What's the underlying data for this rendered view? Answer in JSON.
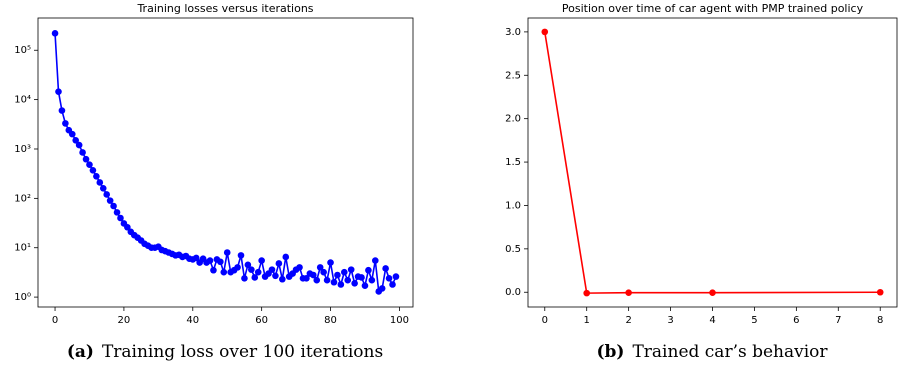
{
  "chart_data": [
    {
      "type": "line",
      "title": "Training losses versus iterations",
      "caption_label": "(a)",
      "caption": "Training loss over 100 iterations",
      "x": [
        0,
        1,
        2,
        3,
        4,
        5,
        6,
        7,
        8,
        9,
        10,
        11,
        12,
        13,
        14,
        15,
        16,
        17,
        18,
        19,
        20,
        21,
        22,
        23,
        24,
        25,
        26,
        27,
        28,
        29,
        30,
        31,
        32,
        33,
        34,
        35,
        36,
        37,
        38,
        39,
        40,
        41,
        42,
        43,
        44,
        45,
        46,
        47,
        48,
        49,
        50,
        51,
        52,
        53,
        54,
        55,
        56,
        57,
        58,
        59,
        60,
        61,
        62,
        63,
        64,
        65,
        66,
        67,
        68,
        69,
        70,
        71,
        72,
        73,
        74,
        75,
        76,
        77,
        78,
        79,
        80,
        81,
        82,
        83,
        84,
        85,
        86,
        87,
        88,
        89,
        90,
        91,
        92,
        93,
        94,
        95,
        96,
        97,
        98,
        99
      ],
      "series": [
        {
          "color": "#0000ff",
          "values": [
            220000,
            14500,
            6000,
            3300,
            2400,
            2000,
            1500,
            1200,
            850,
            620,
            480,
            370,
            280,
            210,
            160,
            120,
            90,
            70,
            52,
            40,
            31,
            26,
            21,
            18,
            16,
            14,
            12,
            11,
            10,
            10,
            10.5,
            9,
            8.5,
            8,
            7.5,
            7,
            7.2,
            6.5,
            6.8,
            6,
            5.8,
            6.2,
            5,
            6,
            5,
            5.5,
            3.5,
            5.8,
            5.2,
            3.2,
            8,
            3.2,
            3.5,
            4,
            7,
            2.4,
            4.5,
            3.6,
            2.5,
            3.2,
            5.5,
            2.6,
            3,
            3.6,
            2.7,
            4.8,
            2.3,
            6.5,
            2.6,
            3,
            3.6,
            4,
            2.4,
            2.4,
            3,
            2.8,
            2.2,
            4,
            3.2,
            2.2,
            5,
            2,
            2.8,
            1.8,
            3.2,
            2.2,
            3.6,
            1.9,
            2.6,
            2.5,
            1.7,
            3.5,
            2.2,
            5.5,
            1.3,
            1.5,
            3.8,
            2.4,
            1.8,
            2.6
          ]
        }
      ],
      "yscale": "log",
      "xlim": [
        -4.95,
        103.95
      ],
      "ylim": [
        0.63,
        450000
      ],
      "xticks": [
        0,
        20,
        40,
        60,
        80,
        100
      ],
      "yticks": [
        {
          "value": 1,
          "label": "10⁰"
        },
        {
          "value": 10,
          "label": "10¹"
        },
        {
          "value": 100,
          "label": "10²"
        },
        {
          "value": 1000,
          "label": "10³"
        },
        {
          "value": 10000,
          "label": "10⁴"
        },
        {
          "value": 100000,
          "label": "10⁵"
        }
      ]
    },
    {
      "type": "line",
      "title": "Position over time of car agent with PMP trained policy",
      "caption_label": "(b)",
      "caption": "Trained car’s behavior",
      "x": [
        0,
        1,
        2,
        4,
        8
      ],
      "series": [
        {
          "color": "#ff0000",
          "values": [
            3.0,
            -0.01,
            -0.005,
            -0.005,
            0.0
          ]
        }
      ],
      "yscale": "linear",
      "xlim": [
        -0.4,
        8.4
      ],
      "ylim": [
        -0.17,
        3.16
      ],
      "xticks": [
        0,
        1,
        2,
        3,
        4,
        5,
        6,
        7,
        8
      ],
      "yticks": [
        {
          "value": 0,
          "label": "0.0"
        },
        0.5,
        {
          "value": 1,
          "label": "1.0"
        },
        1.5,
        {
          "value": 2,
          "label": "2.0"
        },
        2.5,
        {
          "value": 3,
          "label": "3.0"
        }
      ]
    }
  ]
}
